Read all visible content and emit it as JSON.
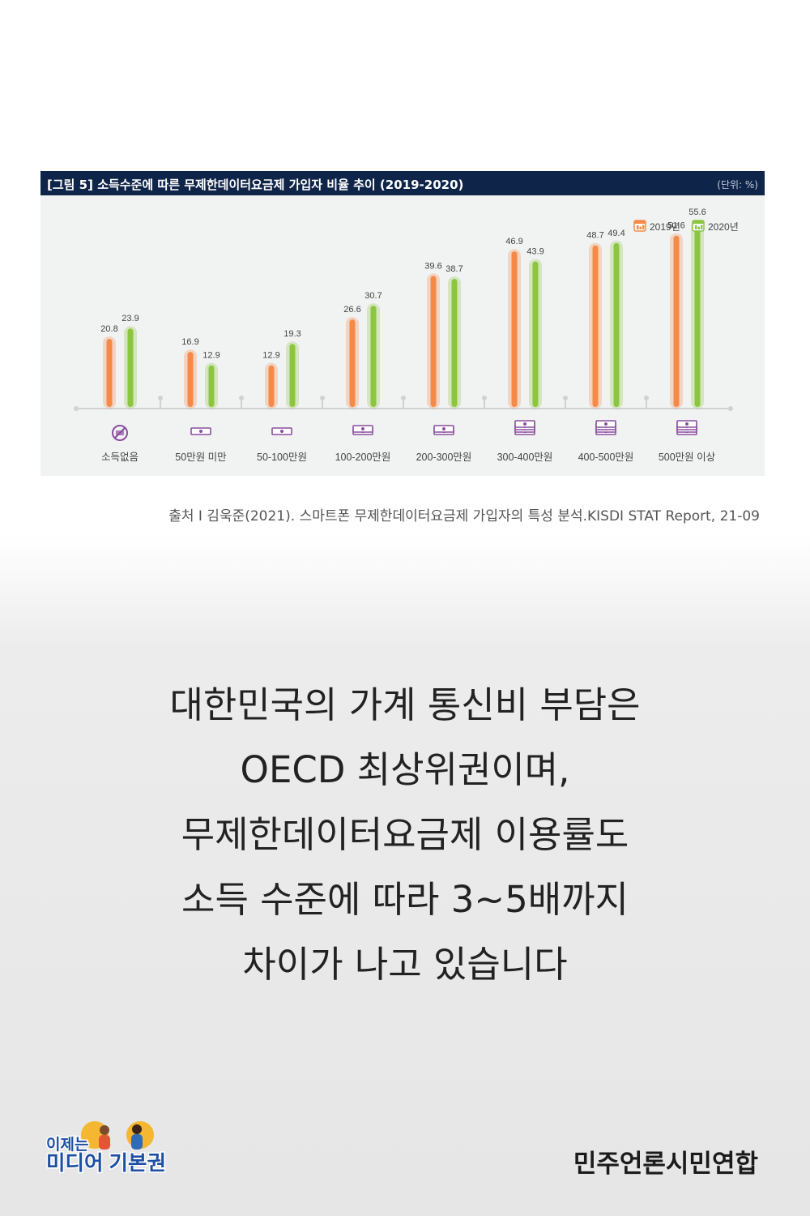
{
  "chart_data": {
    "type": "bar",
    "title": "[그림 5]  소득수준에 따른 무제한데이터요금제 가입자 비율 추이 (2019-2020)",
    "unit": "(단위: %)",
    "categories": [
      "소득없음",
      "50만원 미만",
      "50-100만원",
      "100-200만원",
      "200-300만원",
      "300-400만원",
      "400-500만원",
      "500만원 이상"
    ],
    "series": [
      {
        "name": "2019년",
        "color": "#f58a48",
        "values": [
          20.8,
          16.9,
          12.9,
          26.6,
          39.6,
          46.9,
          48.7,
          51.6
        ]
      },
      {
        "name": "2020년",
        "color": "#8cc63f",
        "values": [
          23.9,
          12.9,
          19.3,
          30.7,
          38.7,
          43.9,
          49.4,
          55.6
        ]
      }
    ],
    "ylim": [
      0,
      60
    ],
    "legend": "top-right",
    "grid": false,
    "category_icon": "money-bill-icon",
    "no_income_icon": "no-money-icon",
    "icon_color": "#8a4f9e"
  },
  "source": "출처 I 김욱준(2021). 스마트폰 무제한데이터요금제 가입자의 특성 분석.KISDI STAT Report, 21-09",
  "message": {
    "lines": [
      "대한민국의 가계 통신비 부담은",
      "OECD 최상위권이며,",
      "무제한데이터요금제 이용률도",
      "소득 수준에 따라 3~5배까지",
      "차이가 나고 있습니다"
    ]
  },
  "footer": {
    "campaign_lines": [
      "이제는",
      "미디어 기본권"
    ],
    "organization": "민주언론시민연합"
  }
}
